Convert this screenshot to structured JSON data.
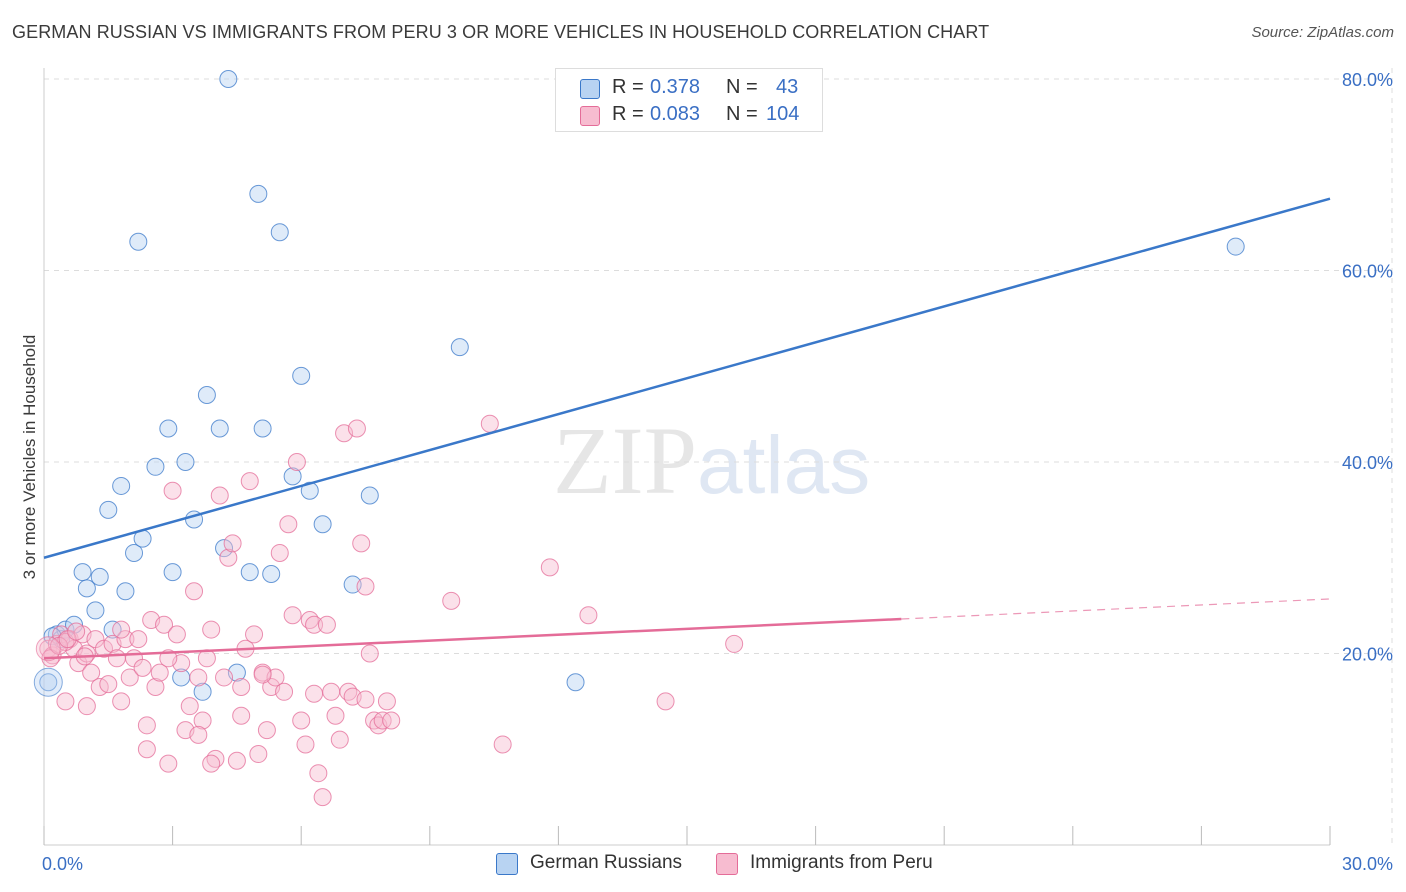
{
  "title": "GERMAN RUSSIAN VS IMMIGRANTS FROM PERU 3 OR MORE VEHICLES IN HOUSEHOLD CORRELATION CHART",
  "source": "Source: ZipAtlas.com",
  "watermark": {
    "zip": "ZIP",
    "atlas": "atlas"
  },
  "legend": {
    "r_label": "R =",
    "n_label": "N =",
    "series": [
      {
        "r": "0.378",
        "n": "43"
      },
      {
        "r": "0.083",
        "n": "104"
      }
    ]
  },
  "colors": {
    "blue": "#3a78c9",
    "blue_fill": "#b8d3f2",
    "pink": "#e46c98",
    "pink_fill": "#f7bcd0",
    "grid": "#dcdcdc",
    "tick_text": "#3a6fc4"
  },
  "chart_data": {
    "type": "scatter",
    "title": "GERMAN RUSSIAN VS IMMIGRANTS FROM PERU 3 OR MORE VEHICLES IN HOUSEHOLD CORRELATION CHART",
    "xlabel": "",
    "ylabel": "3 or more Vehicles in Household",
    "xlim": [
      0,
      30
    ],
    "ylim": [
      0,
      80
    ],
    "x_tick_labels": [
      "0.0%",
      "30.0%"
    ],
    "y_ticks": [
      20,
      40,
      60,
      80
    ],
    "y_tick_labels": [
      "20.0%",
      "40.0%",
      "60.0%",
      "80.0%"
    ],
    "grid": true,
    "legend_position": "top-center",
    "series": [
      {
        "name": "German Russians",
        "color": "#3a78c9",
        "trend": {
          "x0": 0,
          "y0": 30.0,
          "x1": 30,
          "y1": 67.5,
          "dashed_from": null
        },
        "points": [
          [
            0.1,
            17.0
          ],
          [
            0.3,
            22.0
          ],
          [
            0.4,
            21.5
          ],
          [
            0.5,
            22.5
          ],
          [
            0.7,
            23.0
          ],
          [
            0.9,
            28.5
          ],
          [
            1.0,
            26.8
          ],
          [
            1.2,
            24.5
          ],
          [
            1.3,
            28.0
          ],
          [
            1.5,
            35.0
          ],
          [
            1.6,
            22.5
          ],
          [
            1.8,
            37.5
          ],
          [
            1.9,
            26.5
          ],
          [
            2.1,
            30.5
          ],
          [
            2.2,
            63.0
          ],
          [
            2.3,
            32.0
          ],
          [
            2.6,
            39.5
          ],
          [
            2.9,
            43.5
          ],
          [
            3.0,
            28.5
          ],
          [
            3.2,
            17.5
          ],
          [
            3.3,
            40.0
          ],
          [
            3.5,
            34.0
          ],
          [
            3.7,
            16.0
          ],
          [
            3.8,
            47.0
          ],
          [
            4.1,
            43.5
          ],
          [
            4.2,
            31.0
          ],
          [
            4.3,
            80.0
          ],
          [
            4.5,
            18.0
          ],
          [
            4.8,
            28.5
          ],
          [
            5.0,
            68.0
          ],
          [
            5.1,
            43.5
          ],
          [
            5.3,
            28.3
          ],
          [
            5.5,
            64.0
          ],
          [
            5.8,
            38.5
          ],
          [
            6.0,
            49.0
          ],
          [
            6.2,
            37.0
          ],
          [
            6.5,
            33.5
          ],
          [
            7.2,
            27.2
          ],
          [
            7.6,
            36.5
          ],
          [
            9.7,
            52.0
          ],
          [
            12.4,
            17.0
          ],
          [
            27.8,
            62.5
          ],
          [
            0.2,
            21.8
          ]
        ]
      },
      {
        "name": "Immigrants from Peru",
        "color": "#e46c98",
        "trend": {
          "x0": 0,
          "y0": 19.5,
          "x1": 20.0,
          "y1": 23.6,
          "dashed_from": 20.0,
          "x_end": 30,
          "y_end": 25.7
        },
        "points": [
          [
            0.1,
            20.5
          ],
          [
            0.2,
            19.8
          ],
          [
            0.3,
            21.0
          ],
          [
            0.4,
            22.0
          ],
          [
            0.5,
            15.0
          ],
          [
            0.6,
            21.5
          ],
          [
            0.7,
            20.5
          ],
          [
            0.8,
            19.0
          ],
          [
            0.9,
            22.0
          ],
          [
            1.0,
            20.0
          ],
          [
            1.1,
            18.0
          ],
          [
            1.2,
            21.5
          ],
          [
            1.3,
            16.5
          ],
          [
            1.4,
            20.5
          ],
          [
            1.5,
            16.8
          ],
          [
            1.6,
            21.0
          ],
          [
            1.7,
            19.5
          ],
          [
            1.8,
            15.0
          ],
          [
            1.9,
            21.5
          ],
          [
            2.0,
            17.5
          ],
          [
            2.1,
            19.5
          ],
          [
            2.2,
            21.5
          ],
          [
            2.3,
            18.5
          ],
          [
            2.4,
            10.0
          ],
          [
            2.5,
            23.5
          ],
          [
            2.6,
            16.5
          ],
          [
            2.7,
            18.0
          ],
          [
            2.8,
            23.0
          ],
          [
            2.9,
            8.5
          ],
          [
            3.0,
            37.0
          ],
          [
            3.1,
            22.0
          ],
          [
            3.2,
            19.0
          ],
          [
            3.3,
            12.0
          ],
          [
            3.4,
            14.5
          ],
          [
            3.5,
            26.5
          ],
          [
            3.6,
            17.5
          ],
          [
            3.7,
            13.0
          ],
          [
            3.8,
            19.5
          ],
          [
            3.9,
            22.5
          ],
          [
            4.0,
            9.0
          ],
          [
            4.1,
            36.5
          ],
          [
            4.2,
            17.5
          ],
          [
            4.3,
            30.0
          ],
          [
            4.4,
            31.5
          ],
          [
            4.5,
            8.8
          ],
          [
            4.6,
            13.5
          ],
          [
            4.7,
            20.5
          ],
          [
            4.8,
            38.0
          ],
          [
            4.9,
            22.0
          ],
          [
            5.0,
            9.5
          ],
          [
            5.1,
            18.0
          ],
          [
            5.2,
            12.0
          ],
          [
            5.3,
            16.5
          ],
          [
            5.4,
            17.5
          ],
          [
            5.5,
            30.5
          ],
          [
            5.6,
            16.0
          ],
          [
            5.7,
            33.5
          ],
          [
            5.8,
            24.0
          ],
          [
            5.9,
            40.0
          ],
          [
            6.0,
            13.0
          ],
          [
            6.1,
            10.5
          ],
          [
            6.2,
            23.5
          ],
          [
            6.3,
            23.0
          ],
          [
            6.4,
            7.5
          ],
          [
            6.5,
            5.0
          ],
          [
            6.6,
            23.0
          ],
          [
            6.7,
            16.0
          ],
          [
            6.8,
            13.5
          ],
          [
            6.9,
            11.0
          ],
          [
            7.0,
            43.0
          ],
          [
            7.1,
            16.0
          ],
          [
            7.2,
            15.5
          ],
          [
            7.3,
            43.5
          ],
          [
            7.4,
            31.5
          ],
          [
            7.5,
            27.0
          ],
          [
            7.6,
            20.0
          ],
          [
            7.7,
            13.0
          ],
          [
            7.8,
            12.5
          ],
          [
            7.9,
            13.0
          ],
          [
            8.0,
            15.0
          ],
          [
            8.1,
            13.0
          ],
          [
            9.5,
            25.5
          ],
          [
            10.4,
            44.0
          ],
          [
            10.7,
            10.5
          ],
          [
            11.8,
            29.0
          ],
          [
            12.7,
            24.0
          ],
          [
            14.5,
            15.0
          ],
          [
            16.1,
            21.0
          ],
          [
            1.0,
            14.5
          ],
          [
            2.4,
            12.5
          ],
          [
            3.9,
            8.5
          ],
          [
            5.1,
            17.8
          ],
          [
            0.5,
            21.2
          ],
          [
            1.8,
            22.5
          ],
          [
            2.9,
            19.5
          ],
          [
            3.6,
            11.5
          ],
          [
            4.6,
            16.5
          ],
          [
            6.3,
            15.8
          ],
          [
            7.5,
            15.2
          ],
          [
            0.15,
            19.5
          ],
          [
            0.35,
            20.8
          ],
          [
            0.55,
            21.5
          ],
          [
            0.75,
            22.3
          ],
          [
            0.95,
            19.7
          ]
        ]
      }
    ]
  },
  "bottom_legend": [
    "German Russians",
    "Immigrants from Peru"
  ]
}
